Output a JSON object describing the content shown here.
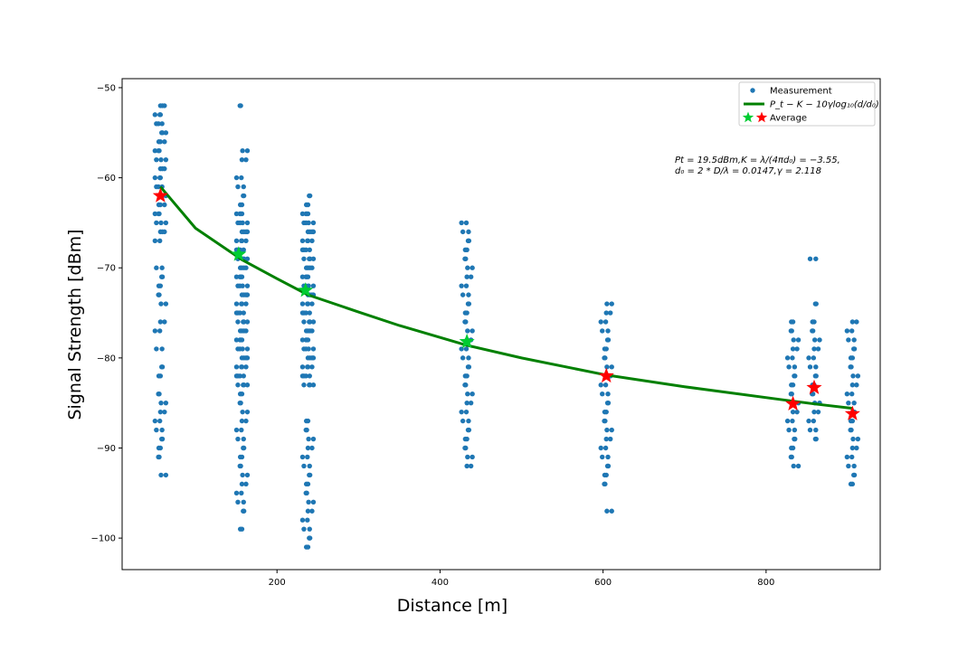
{
  "chart_data": {
    "type": "scatter",
    "xlabel": "Distance [m]",
    "ylabel": "Signal Strength [dBm]",
    "xlim": [
      10,
      940
    ],
    "ylim": [
      -103.5,
      -49
    ],
    "x_ticks": [
      200,
      400,
      600,
      800
    ],
    "y_ticks": [
      -50,
      -60,
      -70,
      -80,
      -90,
      -100
    ],
    "grid": false,
    "legend_position": "top-right",
    "legend": [
      {
        "label": "Measurement",
        "kind": "dot",
        "color": "#1f77b4"
      },
      {
        "label": "P_t − K − 10γlog₁₀(d/d₀)",
        "kind": "line",
        "color": "#008000"
      },
      {
        "label": "Average",
        "kind": "stars",
        "colors": [
          "#00cc33",
          "#ff0000"
        ]
      }
    ],
    "annotation": {
      "line1": "Pt = 19.5dBm,K = λ/(4πd₀) = −3.55,",
      "line2": "d₀ = 2 * D/λ = 0.0147,γ = 2.118"
    },
    "colors": {
      "measurement": "#1f77b4",
      "model": "#008000",
      "average_green": "#00cc33",
      "average_red": "#ff0000"
    },
    "measurement_groups": [
      {
        "x": 57,
        "values": [
          -52,
          -53,
          -54,
          -55,
          -56,
          -57,
          -58,
          -59,
          -60,
          -61,
          -62,
          -63,
          -64,
          -65,
          -66,
          -67,
          -70,
          -71,
          -72,
          -73,
          -74,
          -76,
          -77,
          -79,
          -81,
          -82,
          -84,
          -85,
          -86,
          -87,
          -88,
          -89,
          -90,
          -91,
          -93
        ]
      },
      {
        "x": 157,
        "values": [
          -52,
          -57,
          -58,
          -60,
          -61,
          -62,
          -63,
          -64,
          -65,
          -66,
          -67,
          -68,
          -69,
          -70,
          -71,
          -72,
          -73,
          -74,
          -75,
          -76,
          -77,
          -78,
          -79,
          -80,
          -81,
          -82,
          -83,
          -84,
          -85,
          -86,
          -87,
          -88,
          -89,
          -90,
          -91,
          -92,
          -93,
          -94,
          -95,
          -96,
          -97,
          -99
        ]
      },
      {
        "x": 238,
        "values": [
          -62,
          -63,
          -64,
          -65,
          -66,
          -67,
          -68,
          -69,
          -70,
          -71,
          -72,
          -73,
          -74,
          -75,
          -76,
          -77,
          -78,
          -79,
          -80,
          -81,
          -82,
          -83,
          -87,
          -88,
          -89,
          -90,
          -91,
          -92,
          -93,
          -94,
          -95,
          -96,
          -97,
          -98,
          -99,
          -100,
          -101
        ]
      },
      {
        "x": 433,
        "values": [
          -65,
          -66,
          -67,
          -68,
          -69,
          -70,
          -71,
          -72,
          -73,
          -74,
          -75,
          -76,
          -77,
          -78,
          -79,
          -80,
          -81,
          -82,
          -83,
          -84,
          -85,
          -86,
          -87,
          -88,
          -89,
          -90,
          -91,
          -92
        ]
      },
      {
        "x": 604,
        "values": [
          -74,
          -75,
          -76,
          -77,
          -78,
          -79,
          -80,
          -81,
          -82,
          -83,
          -84,
          -85,
          -86,
          -87,
          -88,
          -89,
          -90,
          -91,
          -92,
          -93,
          -94,
          -97
        ]
      },
      {
        "x": 833,
        "values": [
          -76,
          -77,
          -78,
          -79,
          -80,
          -81,
          -82,
          -83,
          -84,
          -85,
          -86,
          -87,
          -88,
          -89,
          -90,
          -91,
          -92
        ]
      },
      {
        "x": 859,
        "values": [
          -69,
          -74,
          -76,
          -77,
          -78,
          -79,
          -80,
          -81,
          -82,
          -83,
          -84,
          -85,
          -86,
          -87,
          -88,
          -89
        ]
      },
      {
        "x": 906,
        "values": [
          -76,
          -77,
          -78,
          -79,
          -80,
          -81,
          -82,
          -83,
          -84,
          -85,
          -86,
          -87,
          -88,
          -89,
          -90,
          -91,
          -92,
          -93,
          -94
        ]
      }
    ],
    "model_curve": {
      "x": [
        57,
        100,
        157,
        200,
        238,
        300,
        350,
        433,
        500,
        604,
        700,
        833,
        859,
        906
      ],
      "y": [
        -61.0,
        -65.6,
        -69.1,
        -71.2,
        -73.0,
        -74.9,
        -76.4,
        -78.6,
        -80.0,
        -81.9,
        -83.2,
        -84.8,
        -85.1,
        -85.6
      ]
    },
    "averages": [
      {
        "x": 57,
        "y": -62.0,
        "color": "#ff0000"
      },
      {
        "x": 153,
        "y": -68.5,
        "color": "#00cc33"
      },
      {
        "x": 235,
        "y": -72.5,
        "color": "#00cc33"
      },
      {
        "x": 433,
        "y": -78.2,
        "color": "#00cc33"
      },
      {
        "x": 604,
        "y": -82.0,
        "color": "#ff0000"
      },
      {
        "x": 833,
        "y": -85.1,
        "color": "#ff0000"
      },
      {
        "x": 859,
        "y": -83.3,
        "color": "#ff0000"
      },
      {
        "x": 906,
        "y": -86.2,
        "color": "#ff0000"
      }
    ]
  }
}
